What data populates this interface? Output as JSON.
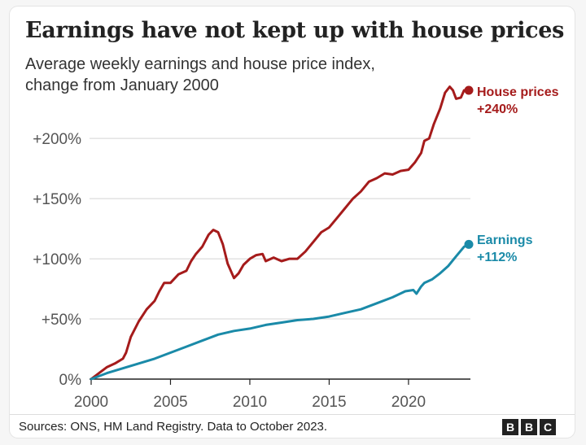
{
  "title": "Earnings have not kept up with house prices",
  "subtitle_lines": [
    "Average weekly earnings and house price index,",
    "change from January 2000"
  ],
  "source": "Sources: ONS, HM Land Registry. Data to October 2023.",
  "logo": [
    "B",
    "B",
    "C"
  ],
  "chart_data": {
    "type": "line",
    "title": "Earnings have not kept up with house prices",
    "xlabel": "",
    "ylabel": "",
    "xlim": [
      2000,
      2023.8
    ],
    "ylim": [
      0,
      240
    ],
    "x_ticks": [
      2000,
      2005,
      2010,
      2015,
      2020
    ],
    "x_tick_labels": [
      "2000",
      "2005",
      "2010",
      "2015",
      "2020"
    ],
    "y_ticks": [
      0,
      50,
      100,
      150,
      200
    ],
    "y_tick_labels": [
      "0%",
      "+50%",
      "+100%",
      "+150%",
      "+200%"
    ],
    "grid": "horizontal",
    "series": [
      {
        "name": "House prices",
        "end_label": "+240%",
        "color": "#a51b1b",
        "points": [
          [
            2000,
            0
          ],
          [
            2000.3,
            3
          ],
          [
            2000.6,
            6
          ],
          [
            2001,
            10
          ],
          [
            2001.5,
            13
          ],
          [
            2002,
            17
          ],
          [
            2002.2,
            22
          ],
          [
            2002.5,
            35
          ],
          [
            2003,
            48
          ],
          [
            2003.5,
            58
          ],
          [
            2004,
            65
          ],
          [
            2004.3,
            73
          ],
          [
            2004.6,
            80
          ],
          [
            2005,
            80
          ],
          [
            2005.5,
            87
          ],
          [
            2006,
            90
          ],
          [
            2006.3,
            98
          ],
          [
            2006.6,
            104
          ],
          [
            2007,
            110
          ],
          [
            2007.4,
            120
          ],
          [
            2007.7,
            124
          ],
          [
            2008,
            122
          ],
          [
            2008.3,
            112
          ],
          [
            2008.6,
            96
          ],
          [
            2009,
            84
          ],
          [
            2009.3,
            88
          ],
          [
            2009.6,
            95
          ],
          [
            2010,
            100
          ],
          [
            2010.4,
            103
          ],
          [
            2010.8,
            104
          ],
          [
            2011,
            98
          ],
          [
            2011.5,
            101
          ],
          [
            2012,
            98
          ],
          [
            2012.5,
            100
          ],
          [
            2013,
            100
          ],
          [
            2013.5,
            106
          ],
          [
            2014,
            114
          ],
          [
            2014.5,
            122
          ],
          [
            2015,
            126
          ],
          [
            2015.5,
            134
          ],
          [
            2016,
            142
          ],
          [
            2016.5,
            150
          ],
          [
            2017,
            156
          ],
          [
            2017.5,
            164
          ],
          [
            2018,
            167
          ],
          [
            2018.5,
            171
          ],
          [
            2019,
            170
          ],
          [
            2019.5,
            173
          ],
          [
            2020,
            174
          ],
          [
            2020.4,
            180
          ],
          [
            2020.8,
            188
          ],
          [
            2021,
            198
          ],
          [
            2021.3,
            200
          ],
          [
            2021.6,
            212
          ],
          [
            2022,
            225
          ],
          [
            2022.3,
            238
          ],
          [
            2022.6,
            243
          ],
          [
            2022.8,
            240
          ],
          [
            2023,
            233
          ],
          [
            2023.3,
            234
          ],
          [
            2023.5,
            240
          ],
          [
            2023.8,
            240
          ]
        ]
      },
      {
        "name": "Earnings",
        "end_label": "+112%",
        "color": "#1a8aa8",
        "points": [
          [
            2000,
            0
          ],
          [
            2001,
            5
          ],
          [
            2002,
            9
          ],
          [
            2003,
            13
          ],
          [
            2004,
            17
          ],
          [
            2005,
            22
          ],
          [
            2006,
            27
          ],
          [
            2007,
            32
          ],
          [
            2008,
            37
          ],
          [
            2009,
            40
          ],
          [
            2010,
            42
          ],
          [
            2011,
            45
          ],
          [
            2012,
            47
          ],
          [
            2013,
            49
          ],
          [
            2014,
            50
          ],
          [
            2015,
            52
          ],
          [
            2016,
            55
          ],
          [
            2017,
            58
          ],
          [
            2018,
            63
          ],
          [
            2019,
            68
          ],
          [
            2019.8,
            73
          ],
          [
            2020.3,
            74
          ],
          [
            2020.5,
            71
          ],
          [
            2020.8,
            77
          ],
          [
            2021,
            80
          ],
          [
            2021.5,
            83
          ],
          [
            2022,
            88
          ],
          [
            2022.5,
            94
          ],
          [
            2023,
            102
          ],
          [
            2023.5,
            110
          ],
          [
            2023.8,
            112
          ]
        ]
      }
    ]
  }
}
